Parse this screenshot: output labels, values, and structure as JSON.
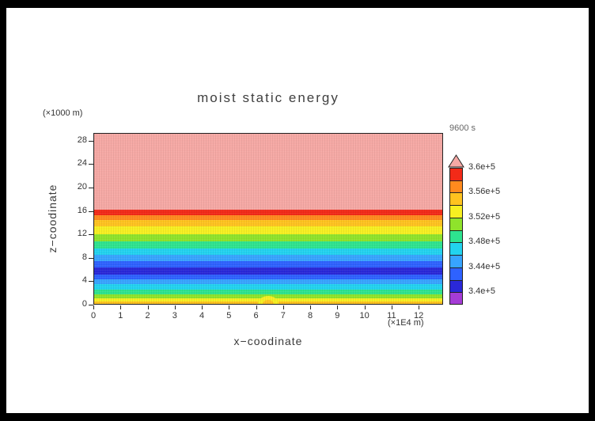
{
  "window": {
    "background": "#000000",
    "page_background": "#ffffff"
  },
  "title": "moist static energy",
  "timestamp": "9600 s",
  "axes": {
    "x_label": "x−coodinate",
    "x_unit": "(×1E4 m)",
    "y_label": "z−coodinate",
    "y_unit": "(×1000 m)",
    "x_ticks": [
      "0",
      "1",
      "2",
      "3",
      "4",
      "5",
      "6",
      "7",
      "8",
      "9",
      "10",
      "11",
      "12"
    ],
    "y_ticks": [
      "0",
      "4",
      "8",
      "12",
      "16",
      "20",
      "24",
      "28"
    ]
  },
  "chart_data": {
    "type": "heatmap",
    "title": "moist static energy",
    "xlabel": "x−coodinate (×1E4 m)",
    "ylabel": "z−coodinate (×1000 m)",
    "time_label": "9600 s",
    "x_range": [
      0,
      12.9
    ],
    "y_range": [
      0,
      29.3
    ],
    "bands": [
      {
        "z0": 0.0,
        "z1": 0.35,
        "value": "3.54-3.56e+5",
        "color": "#ffc31f"
      },
      {
        "z0": 0.35,
        "z1": 0.9,
        "value": "3.52-3.54e+5",
        "color": "#f7ef21"
      },
      {
        "z0": 0.9,
        "z1": 1.65,
        "value": "3.50-3.52e+5",
        "color": "#8fe32b"
      },
      {
        "z0": 1.65,
        "z1": 2.5,
        "value": "3.48-3.50e+5",
        "color": "#2ee38f"
      },
      {
        "z0": 2.5,
        "z1": 3.4,
        "value": "3.46-3.48e+5",
        "color": "#22d3ef"
      },
      {
        "z0": 3.4,
        "z1": 4.2,
        "value": "3.44-3.46e+5",
        "color": "#37a4ff"
      },
      {
        "z0": 4.2,
        "z1": 5.0,
        "value": "3.42-3.44e+5",
        "color": "#2e62ff"
      },
      {
        "z0": 5.0,
        "z1": 6.3,
        "value": "3.40-3.42e+5",
        "color": "#2a28d8"
      },
      {
        "z0": 6.3,
        "z1": 7.3,
        "value": "3.42-3.44e+5",
        "color": "#2e62ff"
      },
      {
        "z0": 7.3,
        "z1": 8.45,
        "value": "3.44-3.46e+5",
        "color": "#37a4ff"
      },
      {
        "z0": 8.45,
        "z1": 9.6,
        "value": "3.46-3.48e+5",
        "color": "#22d3ef"
      },
      {
        "z0": 9.6,
        "z1": 10.8,
        "value": "3.48-3.50e+5",
        "color": "#2ee38f"
      },
      {
        "z0": 10.8,
        "z1": 12.0,
        "value": "3.50-3.52e+5",
        "color": "#8fe32b"
      },
      {
        "z0": 12.0,
        "z1": 13.3,
        "value": "3.52-3.54e+5",
        "color": "#f7ef21"
      },
      {
        "z0": 13.3,
        "z1": 14.4,
        "value": "3.54-3.56e+5",
        "color": "#ffc31f"
      },
      {
        "z0": 14.4,
        "z1": 15.3,
        "value": "3.56-3.58e+5",
        "color": "#ff8a1e"
      },
      {
        "z0": 15.3,
        "z1": 16.2,
        "value": "3.58-3.60e+5",
        "color": "#f22a18"
      },
      {
        "z0": 16.2,
        "z1": 29.3,
        "value": "> 3.6e+5",
        "color": "#f5a8a4"
      }
    ],
    "bubble": {
      "x": 6.45,
      "outer_color": "#f7ef21",
      "inner_color": "#ffc31f"
    },
    "colorbar": {
      "labels_top_to_bottom": [
        "3.6e+5",
        "3.56e+5",
        "3.52e+5",
        "3.48e+5",
        "3.44e+5",
        "3.4e+5"
      ],
      "segments_bottom_to_top": [
        "#a53cd6",
        "#2a28d8",
        "#2e62ff",
        "#37a4ff",
        "#22d3ef",
        "#2ee38f",
        "#8fe32b",
        "#f7ef21",
        "#ffc31f",
        "#ff8a1e",
        "#f22a18"
      ],
      "over_color": "#f5a8a4",
      "segments_per_label_interval": 2
    }
  }
}
